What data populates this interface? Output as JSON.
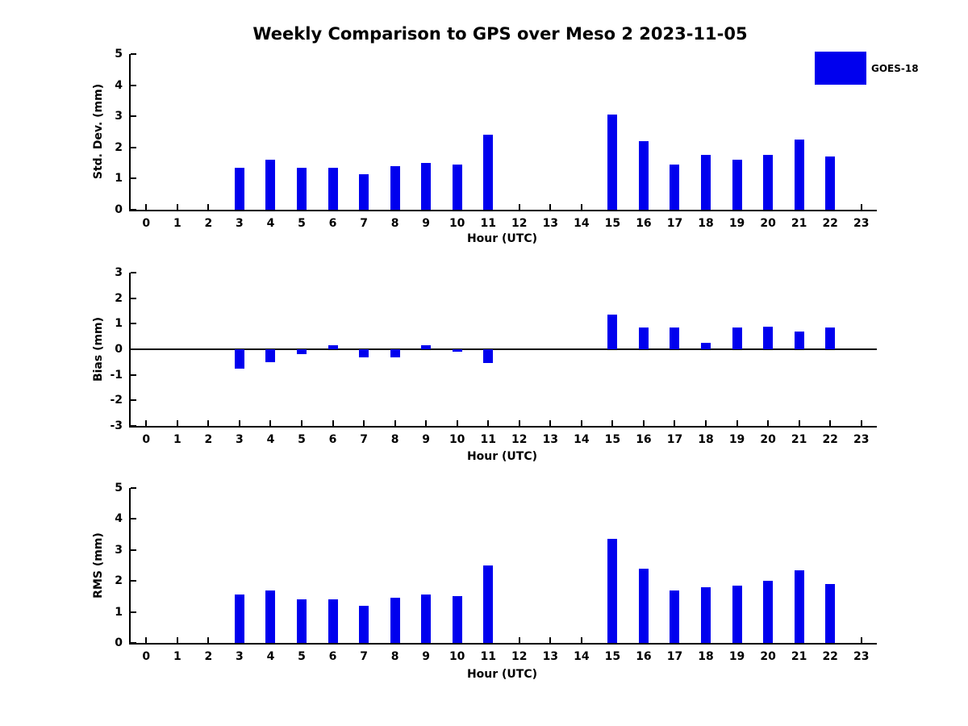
{
  "title": "Weekly Comparison to GPS over Meso 2 2023-11-05",
  "legend": {
    "label": "GOES-18",
    "color": "#0000EE"
  },
  "chart_data": [
    {
      "type": "bar",
      "series_name": "GOES-18",
      "ylabel": "Std. Dev. (mm)",
      "xlabel": "Hour (UTC)",
      "ylim": [
        0,
        5
      ],
      "yticks": [
        0,
        1,
        2,
        3,
        4,
        5
      ],
      "grid": false,
      "bar_color": "#0000EE",
      "categories": [
        "0",
        "1",
        "2",
        "3",
        "4",
        "5",
        "6",
        "7",
        "8",
        "9",
        "10",
        "11",
        "12",
        "13",
        "14",
        "15",
        "16",
        "17",
        "18",
        "19",
        "20",
        "21",
        "22",
        "23"
      ],
      "values": [
        0,
        0,
        0,
        1.35,
        1.6,
        1.35,
        1.35,
        1.15,
        1.4,
        1.5,
        1.45,
        2.4,
        0,
        0,
        0,
        3.05,
        2.2,
        1.45,
        1.75,
        1.6,
        1.75,
        2.25,
        1.7,
        0
      ]
    },
    {
      "type": "bar",
      "series_name": "GOES-18",
      "ylabel": "Bias (mm)",
      "xlabel": "Hour (UTC)",
      "ylim": [
        -3,
        3
      ],
      "yticks": [
        -3,
        -2,
        -1,
        0,
        1,
        2,
        3
      ],
      "grid": false,
      "bar_color": "#0000EE",
      "categories": [
        "0",
        "1",
        "2",
        "3",
        "4",
        "5",
        "6",
        "7",
        "8",
        "9",
        "10",
        "11",
        "12",
        "13",
        "14",
        "15",
        "16",
        "17",
        "18",
        "19",
        "20",
        "21",
        "22",
        "23"
      ],
      "values": [
        0,
        0,
        0,
        -0.75,
        -0.5,
        -0.2,
        0.15,
        -0.3,
        -0.3,
        0.15,
        -0.1,
        -0.55,
        0,
        0,
        0,
        1.35,
        0.85,
        0.85,
        0.25,
        0.85,
        0.9,
        0.7,
        0.85,
        0
      ]
    },
    {
      "type": "bar",
      "series_name": "GOES-18",
      "ylabel": "RMS (mm)",
      "xlabel": "Hour (UTC)",
      "ylim": [
        0,
        5
      ],
      "yticks": [
        0,
        1,
        2,
        3,
        4,
        5
      ],
      "grid": false,
      "bar_color": "#0000EE",
      "categories": [
        "0",
        "1",
        "2",
        "3",
        "4",
        "5",
        "6",
        "7",
        "8",
        "9",
        "10",
        "11",
        "12",
        "13",
        "14",
        "15",
        "16",
        "17",
        "18",
        "19",
        "20",
        "21",
        "22",
        "23"
      ],
      "values": [
        0,
        0,
        0,
        1.55,
        1.7,
        1.4,
        1.4,
        1.2,
        1.45,
        1.55,
        1.5,
        2.5,
        0,
        0,
        0,
        3.35,
        2.4,
        1.7,
        1.8,
        1.85,
        2.0,
        2.35,
        1.9,
        0
      ]
    }
  ]
}
